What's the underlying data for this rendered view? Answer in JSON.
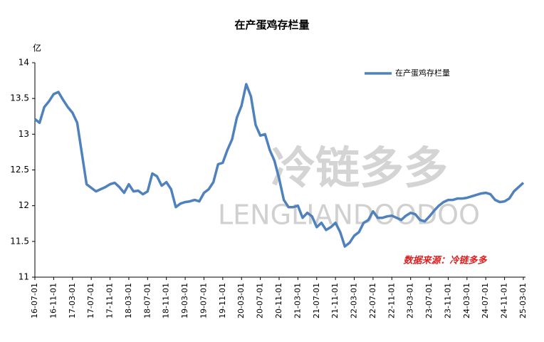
{
  "chart_data": {
    "type": "line",
    "title": "在产蛋鸡存栏量",
    "y_unit": "亿",
    "categories": [
      "16-07-01",
      null,
      null,
      null,
      "16-11-01",
      null,
      null,
      null,
      "17-03-01",
      null,
      null,
      null,
      "17-07-01",
      null,
      null,
      null,
      "17-11-01",
      null,
      null,
      null,
      "18-03-01",
      null,
      null,
      null,
      "18-07-01",
      null,
      null,
      null,
      "18-11-01",
      null,
      null,
      null,
      "19-03-01",
      null,
      null,
      null,
      "19-07-01",
      null,
      null,
      null,
      "19-11-01",
      null,
      null,
      null,
      "20-03-01",
      null,
      null,
      null,
      "20-07-01",
      null,
      null,
      null,
      "20-11-01",
      null,
      null,
      null,
      "21-03-01",
      null,
      null,
      null,
      "21-07-01",
      null,
      null,
      null,
      "21-11-01",
      null,
      null,
      null,
      "22-03-01",
      null,
      null,
      null,
      "22-07-01",
      null,
      null,
      null,
      "22-11-01",
      null,
      null,
      null,
      "23-03-01",
      null,
      null,
      null,
      "23-07-01",
      null,
      null,
      null,
      "23-11-01",
      null,
      null,
      null,
      "24-03-01",
      null,
      null,
      null,
      "24-07-01",
      null,
      null,
      null,
      "24-11-01",
      null,
      null,
      null,
      "25-03-01"
    ],
    "series": [
      {
        "name": "在产蛋鸡存栏量",
        "color": "#4f81bd",
        "values": [
          13.21,
          13.16,
          13.38,
          13.46,
          13.56,
          13.59,
          13.48,
          13.38,
          13.3,
          13.16,
          12.73,
          12.3,
          12.25,
          12.2,
          12.23,
          12.26,
          12.3,
          12.32,
          12.26,
          12.18,
          12.3,
          12.2,
          12.21,
          12.16,
          12.2,
          12.45,
          12.41,
          12.28,
          12.33,
          12.23,
          11.98,
          12.03,
          12.05,
          12.06,
          12.08,
          12.06,
          12.18,
          12.23,
          12.33,
          12.58,
          12.6,
          12.78,
          12.93,
          13.23,
          13.4,
          13.7,
          13.53,
          13.13,
          12.98,
          13.0,
          12.78,
          12.63,
          12.38,
          12.08,
          11.98,
          11.98,
          12.0,
          11.83,
          11.9,
          11.85,
          11.7,
          11.76,
          11.66,
          11.7,
          11.76,
          11.63,
          11.43,
          11.48,
          11.58,
          11.63,
          11.76,
          11.8,
          11.92,
          11.83,
          11.83,
          11.85,
          11.86,
          11.83,
          11.8,
          11.86,
          11.9,
          11.88,
          11.8,
          11.78,
          11.85,
          11.93,
          12.0,
          12.05,
          12.08,
          12.08,
          12.1,
          12.1,
          12.11,
          12.13,
          12.15,
          12.17,
          12.18,
          12.16,
          12.08,
          12.05,
          12.06,
          12.1,
          12.2,
          12.26,
          12.32
        ]
      }
    ],
    "ylim": [
      11,
      14
    ],
    "yticks": [
      11,
      11.5,
      12,
      12.5,
      13,
      13.5,
      14
    ],
    "grid": false,
    "legend": "top-right",
    "annotation": "数据来源：冷链多多",
    "watermark": [
      "冷链多多",
      "LENGLIANDOODOO"
    ]
  }
}
